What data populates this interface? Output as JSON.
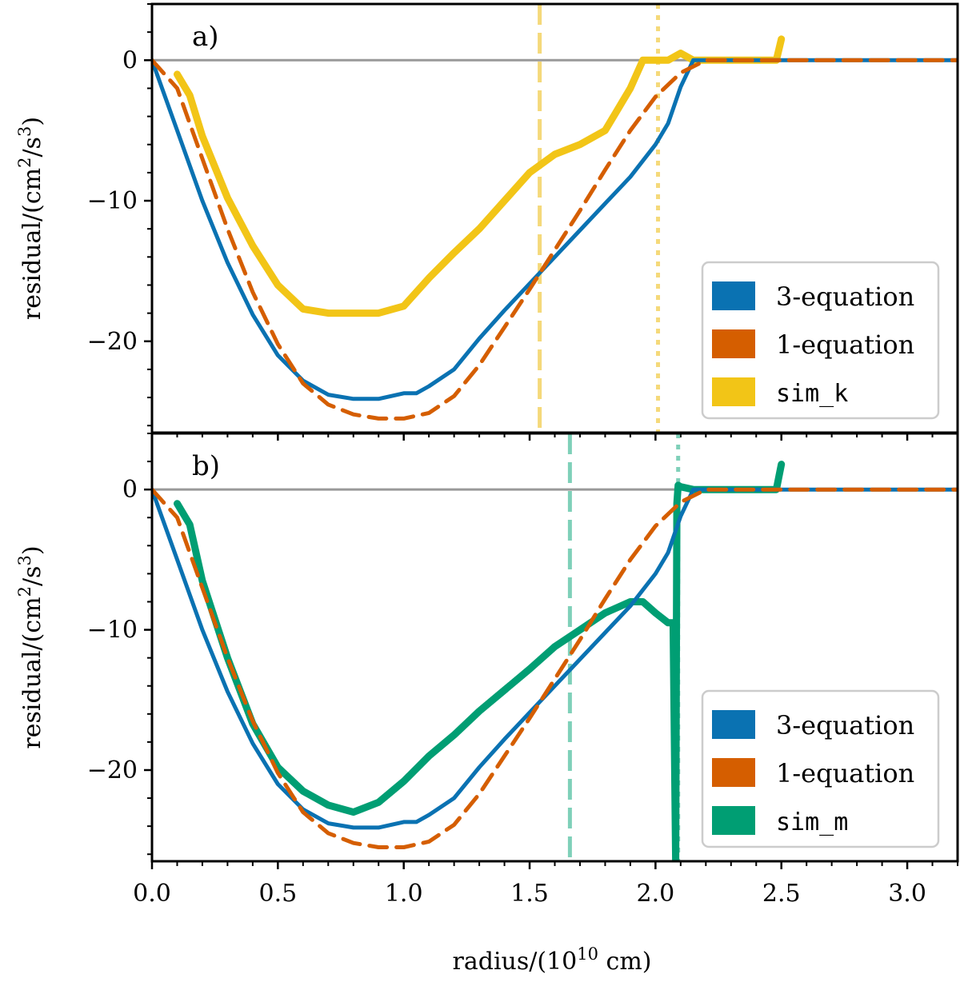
{
  "chart_data": [
    {
      "type": "line",
      "panel_label": "a)",
      "xlabel": "radius/(10¹⁰ cm)",
      "ylabel": "residual/(cm²/s³)",
      "xlim": [
        0.0,
        3.2
      ],
      "ylim": [
        -26.5,
        4
      ],
      "xticks": [
        "0.0",
        "0.5",
        "1.0",
        "1.5",
        "2.0",
        "2.5",
        "3.0"
      ],
      "yticks": [
        "0",
        "−10",
        "−20"
      ],
      "ytick_values": [
        0,
        -10,
        -20
      ],
      "reference_lines": [
        {
          "type": "horizontal",
          "y": 0,
          "color": "#999999"
        },
        {
          "type": "vertical",
          "x": 1.54,
          "style": "dashed",
          "color": "#f5d97a"
        },
        {
          "type": "vertical",
          "x": 2.01,
          "style": "dotted",
          "color": "#f5d97a"
        }
      ],
      "legend_position": "lower-right",
      "series": [
        {
          "name": "3-equation",
          "color": "#0a72b2",
          "style": "solid",
          "x": [
            0.0,
            0.1,
            0.2,
            0.3,
            0.4,
            0.5,
            0.6,
            0.7,
            0.8,
            0.9,
            1.0,
            1.05,
            1.1,
            1.2,
            1.3,
            1.4,
            1.5,
            1.6,
            1.7,
            1.8,
            1.9,
            2.0,
            2.05,
            2.1,
            2.15,
            2.2,
            2.5,
            3.2
          ],
          "y": [
            0,
            -5,
            -10,
            -14.4,
            -18.1,
            -21,
            -22.8,
            -23.8,
            -24.1,
            -24.1,
            -23.7,
            -23.7,
            -23.2,
            -22,
            -19.8,
            -17.8,
            -15.9,
            -14,
            -12.1,
            -10.2,
            -8.3,
            -6,
            -4.5,
            -1.9,
            0,
            0,
            0,
            0
          ]
        },
        {
          "name": "1-equation",
          "color": "#d55e00",
          "style": "dashed",
          "x": [
            0.0,
            0.1,
            0.2,
            0.3,
            0.4,
            0.5,
            0.6,
            0.7,
            0.8,
            0.9,
            1.0,
            1.1,
            1.2,
            1.3,
            1.4,
            1.5,
            1.6,
            1.7,
            1.8,
            1.9,
            2.0,
            2.1,
            2.2,
            2.5,
            3.2
          ],
          "y": [
            0,
            -2,
            -7,
            -12,
            -16.5,
            -20.2,
            -23,
            -24.5,
            -25.2,
            -25.5,
            -25.5,
            -25.1,
            -23.9,
            -21.7,
            -19,
            -16.3,
            -13.5,
            -10.7,
            -7.8,
            -5,
            -2.6,
            -0.9,
            0,
            0,
            0
          ]
        },
        {
          "name": "sim_k",
          "color": "#f2c517",
          "style": "solid",
          "x": [
            0.1,
            0.15,
            0.2,
            0.3,
            0.4,
            0.5,
            0.6,
            0.7,
            0.8,
            0.9,
            1.0,
            1.1,
            1.2,
            1.3,
            1.4,
            1.5,
            1.6,
            1.7,
            1.8,
            1.85,
            1.9,
            1.95,
            2.0,
            2.05,
            2.1,
            2.15,
            2.3,
            2.45,
            2.48,
            2.5
          ],
          "y": [
            -1,
            -2.5,
            -5.4,
            -9.8,
            -13.2,
            -16,
            -17.7,
            -18,
            -18,
            -18,
            -17.5,
            -15.5,
            -13.7,
            -12,
            -10,
            -8,
            -6.7,
            -6,
            -5,
            -3.5,
            -2,
            0,
            0,
            0,
            0.5,
            0,
            0,
            0,
            0,
            1.5
          ]
        }
      ]
    },
    {
      "type": "line",
      "panel_label": "b)",
      "xlabel": "radius/(10¹⁰ cm)",
      "ylabel": "residual/(cm²/s³)",
      "xlim": [
        0.0,
        3.2
      ],
      "ylim": [
        -26.5,
        4
      ],
      "xticks": [
        "0.0",
        "0.5",
        "1.0",
        "1.5",
        "2.0",
        "2.5",
        "3.0"
      ],
      "yticks": [
        "0",
        "−10",
        "−20"
      ],
      "ytick_values": [
        0,
        -10,
        -20
      ],
      "reference_lines": [
        {
          "type": "horizontal",
          "y": 0,
          "color": "#999999"
        },
        {
          "type": "vertical",
          "x": 1.66,
          "style": "dashed",
          "color": "#7fd0b9"
        },
        {
          "type": "vertical",
          "x": 2.09,
          "style": "dotted",
          "color": "#7fd0b9"
        }
      ],
      "legend_position": "lower-right",
      "series": [
        {
          "name": "3-equation",
          "color": "#0a72b2",
          "style": "solid",
          "x": [
            0.0,
            0.1,
            0.2,
            0.3,
            0.4,
            0.5,
            0.6,
            0.7,
            0.8,
            0.9,
            1.0,
            1.05,
            1.1,
            1.2,
            1.3,
            1.4,
            1.5,
            1.6,
            1.7,
            1.8,
            1.9,
            2.0,
            2.05,
            2.1,
            2.15,
            2.2,
            2.5,
            3.2
          ],
          "y": [
            0,
            -5,
            -10,
            -14.4,
            -18.1,
            -21,
            -22.8,
            -23.8,
            -24.1,
            -24.1,
            -23.7,
            -23.7,
            -23.2,
            -22,
            -19.8,
            -17.8,
            -15.9,
            -14,
            -12.1,
            -10.2,
            -8.3,
            -6,
            -4.5,
            -1.9,
            0,
            0,
            0,
            0
          ]
        },
        {
          "name": "1-equation",
          "color": "#d55e00",
          "style": "dashed",
          "x": [
            0.0,
            0.1,
            0.2,
            0.3,
            0.4,
            0.5,
            0.6,
            0.7,
            0.8,
            0.9,
            1.0,
            1.1,
            1.2,
            1.3,
            1.4,
            1.5,
            1.6,
            1.7,
            1.8,
            1.9,
            2.0,
            2.1,
            2.2,
            2.5,
            3.2
          ],
          "y": [
            0,
            -2,
            -7,
            -12,
            -16.5,
            -20.2,
            -23,
            -24.5,
            -25.2,
            -25.5,
            -25.5,
            -25.1,
            -23.9,
            -21.7,
            -19,
            -16.3,
            -13.5,
            -10.7,
            -7.8,
            -5,
            -2.6,
            -0.9,
            0,
            0,
            0
          ]
        },
        {
          "name": "sim_m",
          "color": "#009e73",
          "style": "solid",
          "x": [
            0.1,
            0.15,
            0.2,
            0.3,
            0.4,
            0.5,
            0.6,
            0.7,
            0.8,
            0.9,
            1.0,
            1.1,
            1.2,
            1.3,
            1.4,
            1.5,
            1.6,
            1.7,
            1.8,
            1.9,
            1.95,
            2.0,
            2.05,
            2.07,
            2.08,
            2.085,
            2.09,
            2.1,
            2.15,
            2.3,
            2.48,
            2.5
          ],
          "y": [
            -1,
            -2.5,
            -6.5,
            -12,
            -16.7,
            -19.8,
            -21.5,
            -22.5,
            -23,
            -22.3,
            -20.8,
            -19,
            -17.5,
            -15.8,
            -14.3,
            -12.8,
            -11.2,
            -10,
            -8.8,
            -8,
            -8,
            -8.8,
            -9.5,
            -9.5,
            -26.5,
            -1,
            0.3,
            0.2,
            0,
            0,
            0,
            1.8
          ]
        }
      ]
    }
  ]
}
